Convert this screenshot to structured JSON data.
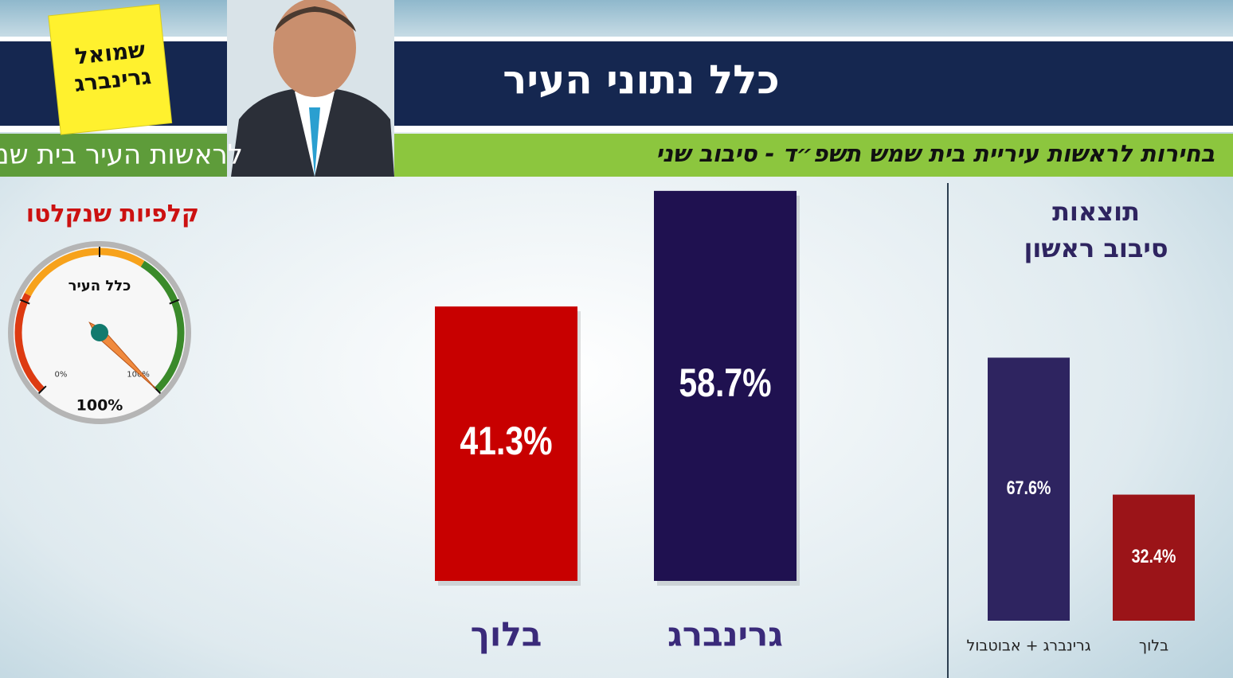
{
  "header": {
    "title": "כלל נתוני העיר",
    "subtitle": "בחירות לראשות עיריית בית שמש תשפ״ד - סיבוב שני",
    "slogan": "לראשות העיר בית שמש",
    "note_lines": [
      "שמואל",
      "גרינברג"
    ]
  },
  "chart_data": [
    {
      "type": "bar",
      "categories": [
        "בלוך",
        "גרינברג"
      ],
      "values": [
        41.3,
        58.7
      ],
      "value_labels": [
        "41.3%",
        "58.7%"
      ],
      "colors": [
        "#c80000",
        "#1f1150"
      ]
    },
    {
      "type": "bar",
      "title_lines": [
        "תוצאות",
        "סיבוב ראשון"
      ],
      "categories": [
        "גרינברג + אבוטבול",
        "בלוך"
      ],
      "values": [
        67.6,
        32.4
      ],
      "value_labels": [
        "67.6%",
        "32.4%"
      ],
      "colors": [
        "#2e2460",
        "#9b1418"
      ]
    },
    {
      "type": "gauge",
      "title": "קלפיות שנקלטו",
      "label": "כלל העיר",
      "value": 100,
      "value_label": "100%",
      "range": [
        0,
        100
      ],
      "ticks": [
        {
          "value": 0,
          "label": "0%"
        },
        {
          "value": 100,
          "label": "100%"
        }
      ]
    }
  ]
}
